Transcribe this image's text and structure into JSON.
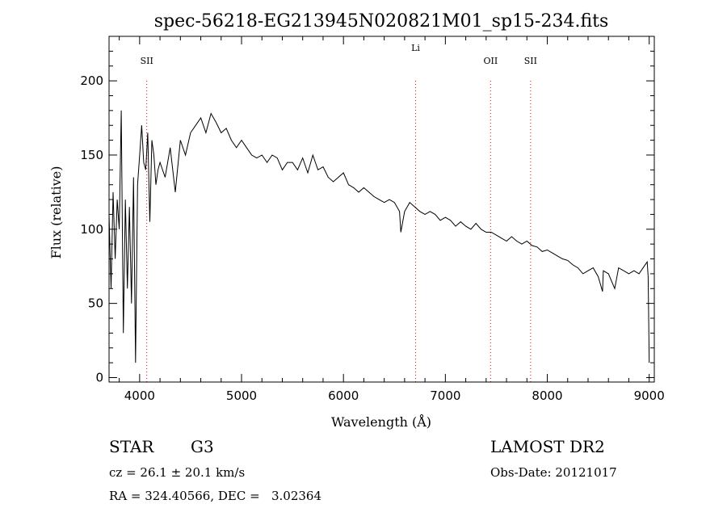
{
  "chart_data": {
    "type": "line",
    "title": "spec-56218-EG213945N020821M01_sp15-234.fits",
    "xlabel": "Wavelength (Å)",
    "ylabel": "Flux (relative)",
    "xlim": [
      3700,
      9050
    ],
    "ylim": [
      -3,
      230
    ],
    "xticks": [
      4000,
      5000,
      6000,
      7000,
      8000,
      9000
    ],
    "yticks": [
      0,
      50,
      100,
      150,
      200
    ],
    "grid": false,
    "legend": "none",
    "series": [
      {
        "x": [
          3700,
          3720,
          3740,
          3760,
          3780,
          3800,
          3820,
          3840,
          3860,
          3880,
          3900,
          3920,
          3940,
          3960,
          3980,
          4000,
          4020,
          4040,
          4060,
          4080,
          4100,
          4120,
          4140,
          4160,
          4180,
          4200,
          4250,
          4300,
          4350,
          4400,
          4450,
          4500,
          4550,
          4600,
          4650,
          4700,
          4750,
          4800,
          4850,
          4900,
          4950,
          5000,
          5050,
          5100,
          5150,
          5200,
          5250,
          5300,
          5350,
          5400,
          5450,
          5500,
          5550,
          5600,
          5650,
          5700,
          5750,
          5800,
          5850,
          5900,
          5950,
          6000,
          6050,
          6100,
          6150,
          6200,
          6250,
          6300,
          6350,
          6400,
          6450,
          6500,
          6550,
          6563,
          6600,
          6650,
          6700,
          6750,
          6800,
          6850,
          6900,
          6950,
          7000,
          7050,
          7100,
          7150,
          7200,
          7250,
          7300,
          7350,
          7400,
          7450,
          7500,
          7550,
          7600,
          7650,
          7700,
          7750,
          7800,
          7850,
          7900,
          7950,
          8000,
          8050,
          8100,
          8150,
          8200,
          8250,
          8300,
          8350,
          8400,
          8450,
          8500,
          8542,
          8550,
          8600,
          8662,
          8700,
          8750,
          8800,
          8850,
          8900,
          8950,
          8980,
          8990,
          9000
        ],
        "y": [
          110,
          60,
          125,
          80,
          120,
          100,
          180,
          30,
          120,
          60,
          115,
          50,
          135,
          10,
          130,
          150,
          170,
          145,
          140,
          165,
          105,
          160,
          150,
          130,
          140,
          145,
          135,
          155,
          125,
          160,
          150,
          165,
          170,
          175,
          165,
          178,
          172,
          165,
          168,
          160,
          155,
          160,
          155,
          150,
          148,
          150,
          145,
          150,
          148,
          140,
          145,
          145,
          140,
          148,
          138,
          150,
          140,
          142,
          135,
          132,
          135,
          138,
          130,
          128,
          125,
          128,
          125,
          122,
          120,
          118,
          120,
          118,
          112,
          98,
          112,
          118,
          115,
          112,
          110,
          112,
          110,
          106,
          108,
          106,
          102,
          105,
          102,
          100,
          104,
          100,
          98,
          98,
          96,
          94,
          92,
          95,
          92,
          90,
          92,
          89,
          88,
          85,
          86,
          84,
          82,
          80,
          79,
          76,
          74,
          70,
          72,
          74,
          68,
          58,
          72,
          70,
          60,
          74,
          72,
          70,
          72,
          70,
          75,
          78,
          68,
          10
        ]
      }
    ],
    "lines": [
      {
        "label": "SII",
        "x": 4070
      },
      {
        "label": "Li",
        "x": 6708
      },
      {
        "label": "OII",
        "x": 7444
      },
      {
        "label": "SII",
        "x": 7836
      }
    ],
    "line_color": "#ff0000"
  },
  "info": {
    "class": "STAR",
    "subclass": "G3",
    "release": "LAMOST DR2",
    "cz": "cz = 26.1 ± 20.1 km/s",
    "obs_date": "Obs-Date: 20121017",
    "coords": "RA = 324.40566, DEC =   3.02364"
  }
}
